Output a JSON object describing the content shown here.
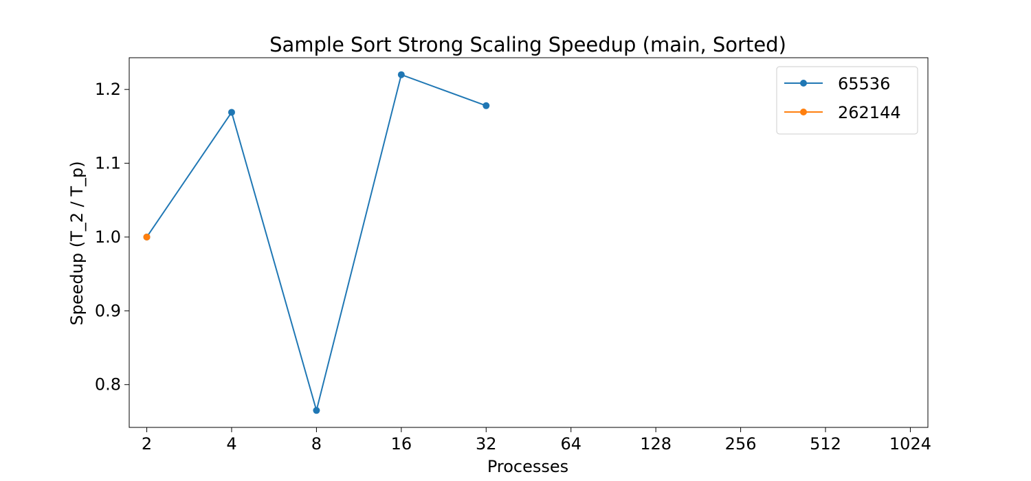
{
  "chart_data": {
    "type": "line",
    "title": "Sample Sort Strong Scaling Speedup (main, Sorted)",
    "xlabel": "Processes",
    "ylabel": "Speedup (T_2 / T_p)",
    "x_scale": "log2",
    "x_ticks": [
      2,
      4,
      8,
      16,
      32,
      64,
      128,
      256,
      512,
      1024
    ],
    "x_tick_labels": [
      "2",
      "4",
      "8",
      "16",
      "32",
      "64",
      "128",
      "256",
      "512",
      "1024"
    ],
    "y_ticks": [
      0.8,
      0.9,
      1.0,
      1.1,
      1.2
    ],
    "y_tick_labels": [
      "0.8",
      "0.9",
      "1.0",
      "1.1",
      "1.2"
    ],
    "ylim": [
      0.742,
      1.243
    ],
    "grid": false,
    "legend_position": "top-right",
    "series": [
      {
        "name": "65536",
        "color": "#1f77b4",
        "x": [
          2,
          4,
          8,
          16,
          32
        ],
        "y": [
          1.0,
          1.169,
          0.765,
          1.22,
          1.178
        ]
      },
      {
        "name": "262144",
        "color": "#ff7f0e",
        "x": [
          2
        ],
        "y": [
          1.0
        ]
      }
    ]
  }
}
